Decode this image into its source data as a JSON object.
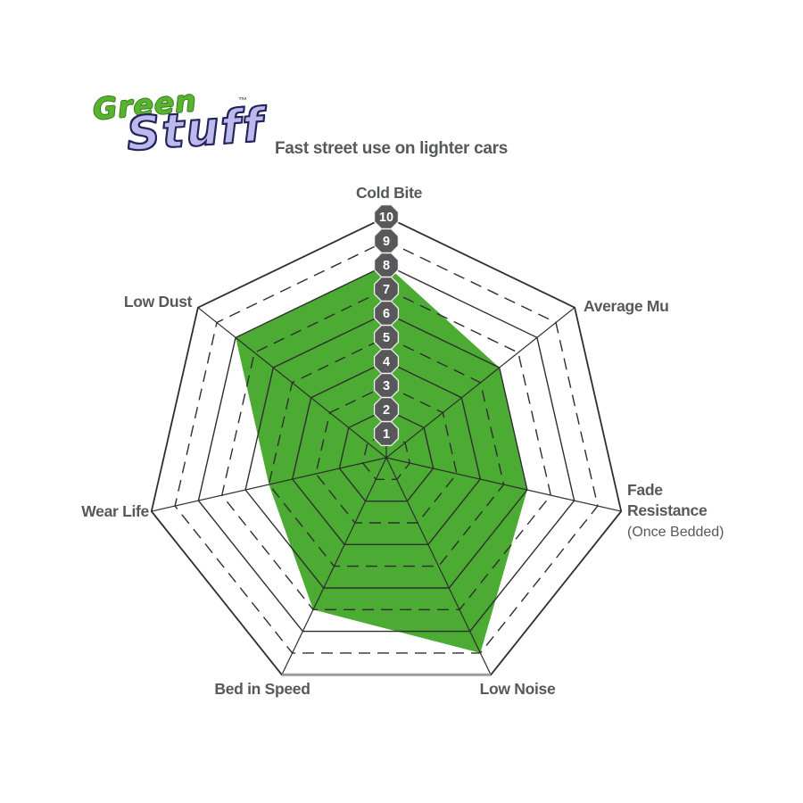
{
  "logo": {
    "word1": "Green",
    "word2": "Stuff",
    "trademark": "™",
    "word1_color": "#5ab32f",
    "word2_color": "#bcbaec"
  },
  "chart_data": {
    "type": "radar",
    "title": "Fast street use on lighter cars",
    "scale_min": 1,
    "scale_max": 10,
    "scale_ticks": [
      "1",
      "2",
      "3",
      "4",
      "5",
      "6",
      "7",
      "8",
      "9",
      "10"
    ],
    "categories": [
      "Cold Bite",
      "Average Mu",
      "Fade Resistance (Once Bedded)",
      "Low Noise",
      "Bed in Speed",
      "Wear Life",
      "Low Dust"
    ],
    "values": [
      8,
      6,
      6,
      9,
      7,
      5,
      8
    ],
    "axes": [
      {
        "label": "Cold Bite",
        "value": 8
      },
      {
        "label": "Average Mu",
        "value": 6
      },
      {
        "label": "Fade Resistance",
        "label_lines": [
          "Fade",
          "Resistance"
        ],
        "sublabel": "(Once Bedded)",
        "value": 6
      },
      {
        "label": "Low Noise",
        "value": 9
      },
      {
        "label": "Bed in Speed",
        "value": 7
      },
      {
        "label": "Wear Life",
        "value": 5
      },
      {
        "label": "Low Dust",
        "value": 8
      }
    ],
    "grid": "alternating solid (even rings) and dashed (odd rings)",
    "legend_position": "none",
    "colors": {
      "fill": "#4cab33",
      "grid": "#2e2e2e",
      "badge": "#58585b",
      "badge_rim": "#f2f2f2",
      "badge_text": "#ffffff",
      "label": "#57585a",
      "baseline": "#9b9b9b"
    }
  }
}
